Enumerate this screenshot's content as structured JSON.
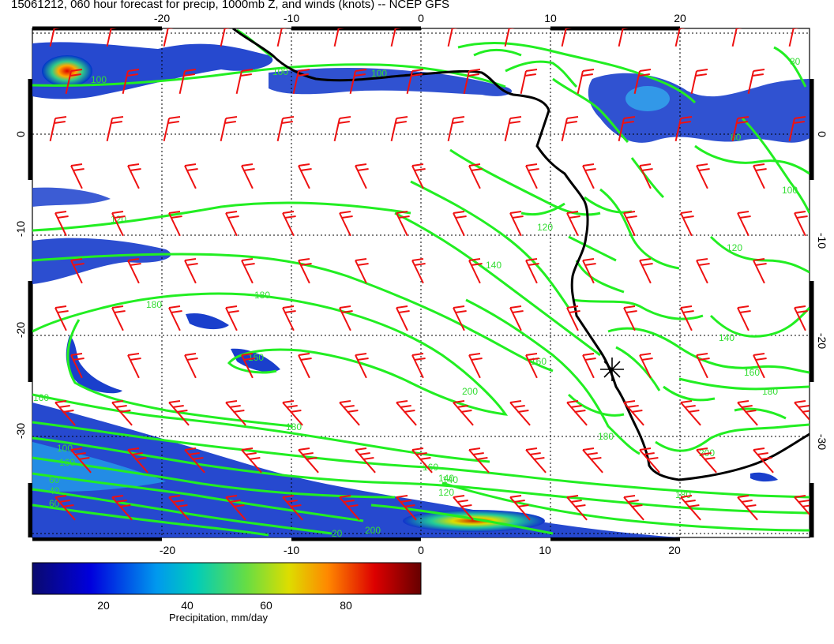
{
  "header": {
    "title": "15061212, 060 hour forecast for precip, 1000mb Z, and winds (knots) -- NCEP GFS"
  },
  "map": {
    "x_ticks": [
      "-20",
      "-10",
      "0",
      "10",
      "20"
    ],
    "y_ticks": [
      "0",
      "-10",
      "-20",
      "-30"
    ],
    "colors": {
      "contour": "#22ee22",
      "barb": "#ee1111",
      "coast": "#000000",
      "grid": "#000000"
    },
    "contour_labels": [
      "100",
      "100",
      "100",
      "120",
      "120",
      "120",
      "140",
      "140",
      "140",
      "160",
      "160",
      "160",
      "160",
      "160",
      "160",
      "180",
      "180",
      "180",
      "180",
      "180",
      "180",
      "200",
      "200",
      "200",
      "140",
      "120",
      "100",
      "80",
      "60",
      "40",
      "20",
      "60",
      "80",
      "100"
    ],
    "marker": "station-star"
  },
  "colorbar": {
    "ticks": [
      "20",
      "40",
      "60",
      "80"
    ],
    "label": "Precipitation, mm/day",
    "colors": [
      "#0a0a7a",
      "#0033ff",
      "#00bbee",
      "#44dd88",
      "#dddd00",
      "#ff6600",
      "#cc0000",
      "#660000"
    ]
  }
}
